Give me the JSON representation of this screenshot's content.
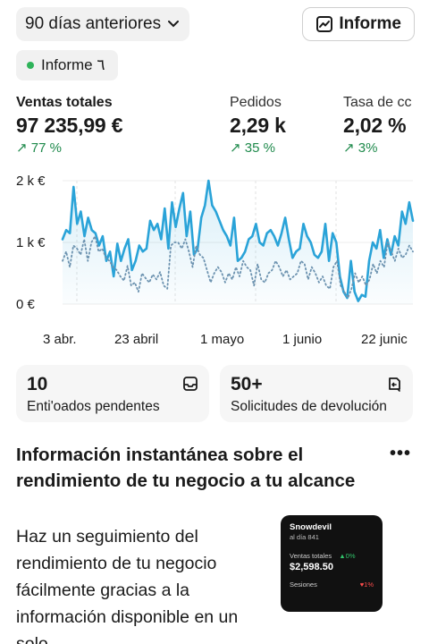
{
  "header": {
    "range_label": "90 días anteriores",
    "report_label": "Informe"
  },
  "filter_chip": {
    "label": "Informe ٦"
  },
  "metrics": [
    {
      "label": "Ventas totales",
      "value": "97 235,99 €",
      "delta": "↗ 77 %"
    },
    {
      "label": "Pedidos",
      "value": "2,29 k",
      "delta": "↗ 35 %"
    },
    {
      "label": "Tasa de cc",
      "value": "2,02 %",
      "delta": "↗ 3%"
    }
  ],
  "chart_data": {
    "type": "line",
    "y_tick_labels": [
      "2 k €",
      "1 k €",
      "0 €"
    ],
    "ylim": [
      0,
      2000
    ],
    "x_tick_labels": [
      "3 abr.",
      "23 abril",
      "1 mayo",
      "1 junio",
      "22 junic"
    ],
    "series": [
      {
        "style": "solid",
        "color": "#2aa3d8",
        "values": [
          1050,
          1200,
          1150,
          1900,
          1300,
          1500,
          1100,
          1400,
          1200,
          1150,
          950,
          1100,
          700,
          850,
          450,
          980,
          700,
          900,
          1050,
          550,
          700,
          950,
          850,
          900,
          1350,
          1200,
          1300,
          1050,
          1550,
          900,
          1650,
          1250,
          1550,
          1800,
          1100,
          1500,
          800,
          900,
          1400,
          1600,
          2000,
          1600,
          1500,
          1350,
          1200,
          1100,
          950,
          1400,
          700,
          750,
          850,
          1050,
          1100,
          1300,
          1000,
          950,
          1150,
          1200,
          1100,
          950,
          1150,
          1400,
          1050,
          750,
          850,
          900,
          1300,
          1100,
          1000,
          800,
          750,
          850,
          1300,
          700,
          1150,
          1000,
          450,
          200,
          100,
          700,
          200,
          50,
          150,
          120,
          700,
          1000,
          900,
          1200,
          750,
          1050,
          800,
          1100,
          950,
          1500,
          1300,
          1650,
          1350
        ]
      },
      {
        "style": "dotted",
        "color": "#6d93b0",
        "values": [
          700,
          850,
          600,
          950,
          900,
          800,
          1050,
          700,
          1000,
          1100,
          850,
          900,
          750,
          700,
          600,
          550,
          450,
          380,
          620,
          300,
          350,
          200,
          500,
          420,
          350,
          480,
          400,
          520,
          300,
          250,
          950,
          1000,
          1000,
          900,
          1050,
          850,
          600,
          950,
          800,
          750,
          550,
          350,
          500,
          600,
          520,
          350,
          500,
          400,
          600,
          450,
          700,
          600,
          550,
          300,
          650,
          400,
          350,
          500,
          550,
          700,
          600,
          450,
          550,
          400,
          450,
          500,
          700,
          650,
          400,
          600,
          500,
          350,
          450,
          300,
          250,
          600,
          700,
          300,
          200,
          100,
          250,
          500,
          350,
          450,
          300,
          400,
          650,
          500,
          700,
          600,
          1000,
          850,
          700,
          900,
          750,
          800,
          950,
          850
        ]
      }
    ]
  },
  "cards": [
    {
      "number": "10",
      "label": "Enti'oados pendentes"
    },
    {
      "number": "50+",
      "label": "Solicitudes de devolución"
    }
  ],
  "insight": {
    "title": "Información instantánea sobre el rendimiento de tu negocio a tu alcance",
    "body": "Haz un seguimiento del rendimiento de tu negocio fácilmente gracias a la información disponible en un solo",
    "more_label": "•••",
    "phone": {
      "store": "Snowdevil",
      "subtitle": "al día 841",
      "sales_label": "Ventas totales",
      "sales_delta": "▲0%",
      "sales_amount": "$2,598.50",
      "sessions_label": "Sesiones",
      "sessions_delta": "♥1%"
    }
  }
}
